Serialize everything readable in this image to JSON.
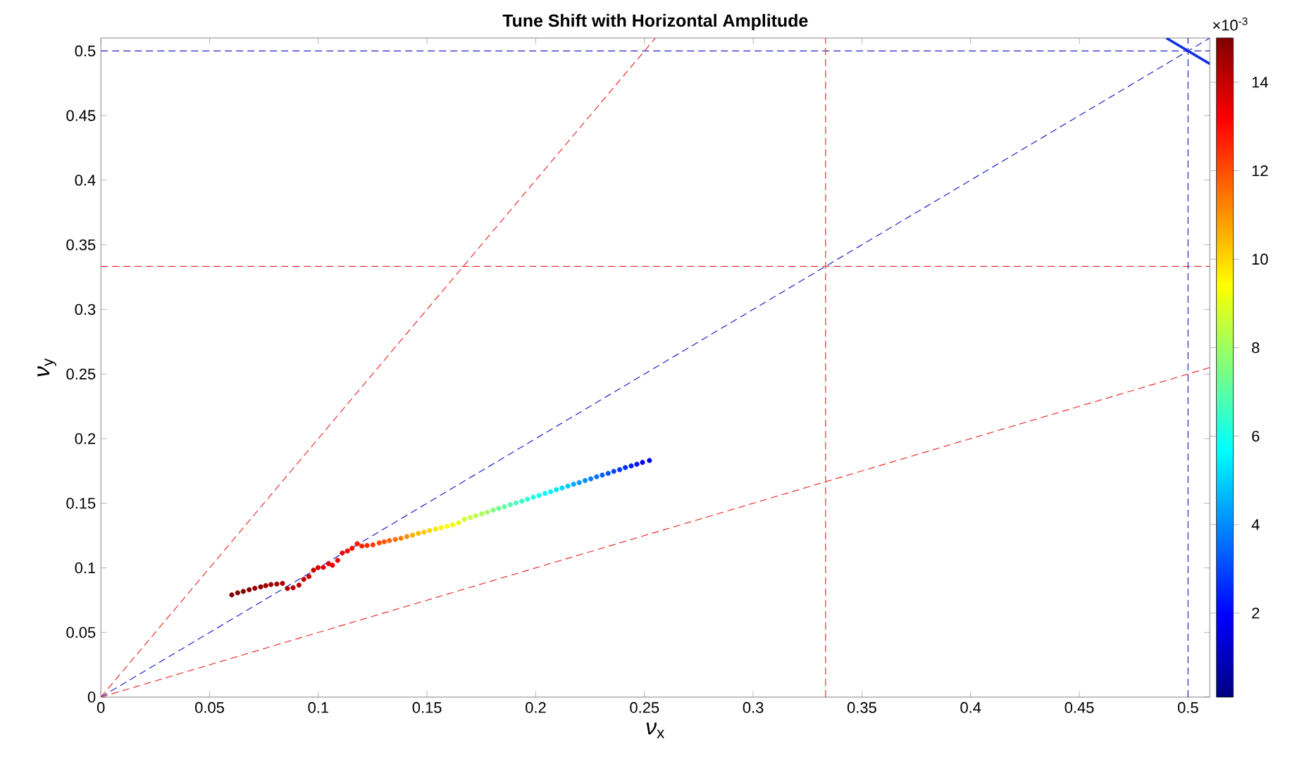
{
  "chart_data": {
    "type": "scatter",
    "title": "Tune Shift with Horizontal Amplitude",
    "xlabel": "*ν*$_{x}$",
    "ylabel": "*ν*$_{y}$",
    "xlim": [
      0,
      0.51
    ],
    "ylim": [
      0,
      0.51
    ],
    "xticks": [
      0,
      0.05,
      0.1,
      0.15,
      0.2,
      0.25,
      0.3,
      0.35,
      0.4,
      0.45,
      0.5
    ],
    "yticks": [
      0,
      0.05,
      0.1,
      0.15,
      0.2,
      0.25,
      0.3,
      0.35,
      0.4,
      0.45,
      0.5
    ],
    "clim": [
      0.1,
      15
    ],
    "cticks": [
      2,
      4,
      6,
      8,
      10,
      12,
      14
    ],
    "annotations": [
      "×10$^{-3}$"
    ],
    "ref_lines": [
      {
        "axis": "y",
        "value": 0.5,
        "color": "#2020c8",
        "line_style": "dashed"
      },
      {
        "axis": "y",
        "value": 0.3333,
        "color": "#e83030",
        "line_style": "dashed"
      },
      {
        "axis": "x",
        "value": 0.3333,
        "color": "#e83030",
        "line_style": "dashed"
      },
      {
        "axis": "x",
        "value": 0.5,
        "color": "#2020c8",
        "line_style": "dashed"
      }
    ],
    "series": [
      {
        "type": "scatter",
        "marker": "circle",
        "x": [
          0.0602,
          0.0629,
          0.0655,
          0.0682,
          0.0708,
          0.0735,
          0.0758,
          0.0782,
          0.0809,
          0.0835,
          0.0858,
          0.0884,
          0.0911,
          0.0933,
          0.0957,
          0.0978,
          0.0999,
          0.1023,
          0.1047,
          0.1065,
          0.1089,
          0.111,
          0.1134,
          0.1155,
          0.1179,
          0.12,
          0.1224,
          0.1251,
          0.128,
          0.1303,
          0.1327,
          0.1354,
          0.138,
          0.1407,
          0.1433,
          0.146,
          0.1486,
          0.1512,
          0.1539,
          0.1565,
          0.1592,
          0.1618,
          0.1645,
          0.1671,
          0.1698,
          0.1724,
          0.1751,
          0.1777,
          0.1804,
          0.183,
          0.1856,
          0.1883,
          0.1909,
          0.1936,
          0.1962,
          0.1989,
          0.2015,
          0.2042,
          0.2068,
          0.2095,
          0.2121,
          0.2148,
          0.2174,
          0.22,
          0.2227,
          0.2253,
          0.228,
          0.2306,
          0.2333,
          0.2359,
          0.2386,
          0.2412,
          0.2439,
          0.2465,
          0.2491,
          0.2523
        ],
        "values": [
          0.0791,
          0.0807,
          0.0818,
          0.0831,
          0.0842,
          0.0853,
          0.0862,
          0.0871,
          0.0875,
          0.088,
          0.084,
          0.0846,
          0.0867,
          0.0911,
          0.0933,
          0.0982,
          0.1002,
          0.1004,
          0.1033,
          0.102,
          0.1058,
          0.1115,
          0.1131,
          0.1151,
          0.1187,
          0.1169,
          0.1173,
          0.1178,
          0.1193,
          0.1202,
          0.1211,
          0.122,
          0.1229,
          0.1242,
          0.1253,
          0.1267,
          0.1276,
          0.1289,
          0.13,
          0.1311,
          0.1322,
          0.1333,
          0.1349,
          0.1376,
          0.1389,
          0.1403,
          0.1418,
          0.1431,
          0.1447,
          0.146,
          0.1473,
          0.1489,
          0.1502,
          0.1516,
          0.1531,
          0.1547,
          0.156,
          0.1576,
          0.1589,
          0.1605,
          0.1618,
          0.1633,
          0.1647,
          0.166,
          0.1676,
          0.1689,
          0.1705,
          0.1718,
          0.1731,
          0.1747,
          0.176,
          0.1776,
          0.1789,
          0.1802,
          0.1816,
          0.1831
        ],
        "colors": [
          "#800000",
          "#860000",
          "#860000",
          "#8D0000",
          "#940000",
          "#940000",
          "#9B0000",
          "#A20000",
          "#A20000",
          "#A80000",
          "#AF0000",
          "#B60000",
          "#BD0000",
          "#C40000",
          "#CB0000",
          "#D10000",
          "#D80000",
          "#DF0000",
          "#E60000",
          "#ED0000",
          "#F40000",
          "#FA0000",
          "#FF0200",
          "#FF0900",
          "#FF1000",
          "#FF1E00",
          "#FF2C00",
          "#FF3900",
          "#FF4700",
          "#FF5500",
          "#FF6200",
          "#FF7000",
          "#FF7E00",
          "#FF8B00",
          "#FFAE00",
          "#FFBB00",
          "#FFC900",
          "#FFD700",
          "#FFE500",
          "#FFF200",
          "#FEFF01",
          "#F0FF0F",
          "#E3FF1C",
          "#D5FF2A",
          "#C7FF38",
          "#BAFF45",
          "#ACFF53",
          "#9EFF61",
          "#7CFF83",
          "#6EFF91",
          "#61FF9E",
          "#53FFAC",
          "#45FFBA",
          "#38FFC7",
          "#2AFFD5",
          "#1CFFE3",
          "#0FFFF0",
          "#01FFFE",
          "#00F2FF",
          "#00E5FF",
          "#00D7FF",
          "#00C9FF",
          "#00A7FF",
          "#0099FF",
          "#008BFF",
          "#007EFF",
          "#0070FF",
          "#0062FF",
          "#0055FF",
          "#0047FF",
          "#0039FF",
          "#002CFF",
          "#001EFF",
          "#0010FF",
          "#0003FF",
          "#0000DF"
        ],
        "cvalues": [
          15.0,
          14.9,
          14.9,
          14.8,
          14.7,
          14.7,
          14.6,
          14.5,
          14.5,
          14.4,
          14.3,
          14.2,
          14.1,
          14.0,
          13.9,
          13.8,
          13.7,
          13.6,
          13.5,
          13.4,
          13.3,
          13.2,
          13.1,
          13.0,
          12.9,
          12.7,
          12.5,
          12.3,
          12.1,
          11.9,
          11.7,
          11.5,
          11.3,
          11.1,
          10.6,
          10.4,
          10.2,
          10.0,
          9.8,
          9.6,
          9.4,
          9.2,
          9.0,
          8.8,
          8.6,
          8.4,
          8.2,
          8.0,
          7.5,
          7.3,
          7.1,
          6.9,
          6.7,
          6.5,
          6.3,
          6.1,
          5.9,
          5.7,
          5.5,
          5.3,
          5.1,
          4.9,
          4.4,
          4.2,
          4.0,
          3.8,
          3.6,
          3.4,
          3.2,
          3.0,
          2.8,
          2.6,
          2.4,
          2.2,
          2.0,
          1.5
        ]
      },
      {
        "type": "line",
        "color": "#e83030",
        "line_style": "dashed",
        "x": [
          0,
          0.255
        ],
        "values": [
          0,
          0.51
        ]
      },
      {
        "type": "line",
        "color": "#2020c8",
        "line_style": "dashed",
        "x": [
          0,
          0.51
        ],
        "values": [
          0,
          0.51
        ]
      },
      {
        "type": "line",
        "color": "#e83030",
        "line_style": "dashed",
        "x": [
          0,
          0.51
        ],
        "values": [
          0,
          0.255
        ]
      },
      {
        "type": "line",
        "color": "#1030e0",
        "line_style": "solid",
        "x": [
          0.49,
          0.51
        ],
        "values": [
          0.51,
          0.49
        ]
      }
    ]
  }
}
